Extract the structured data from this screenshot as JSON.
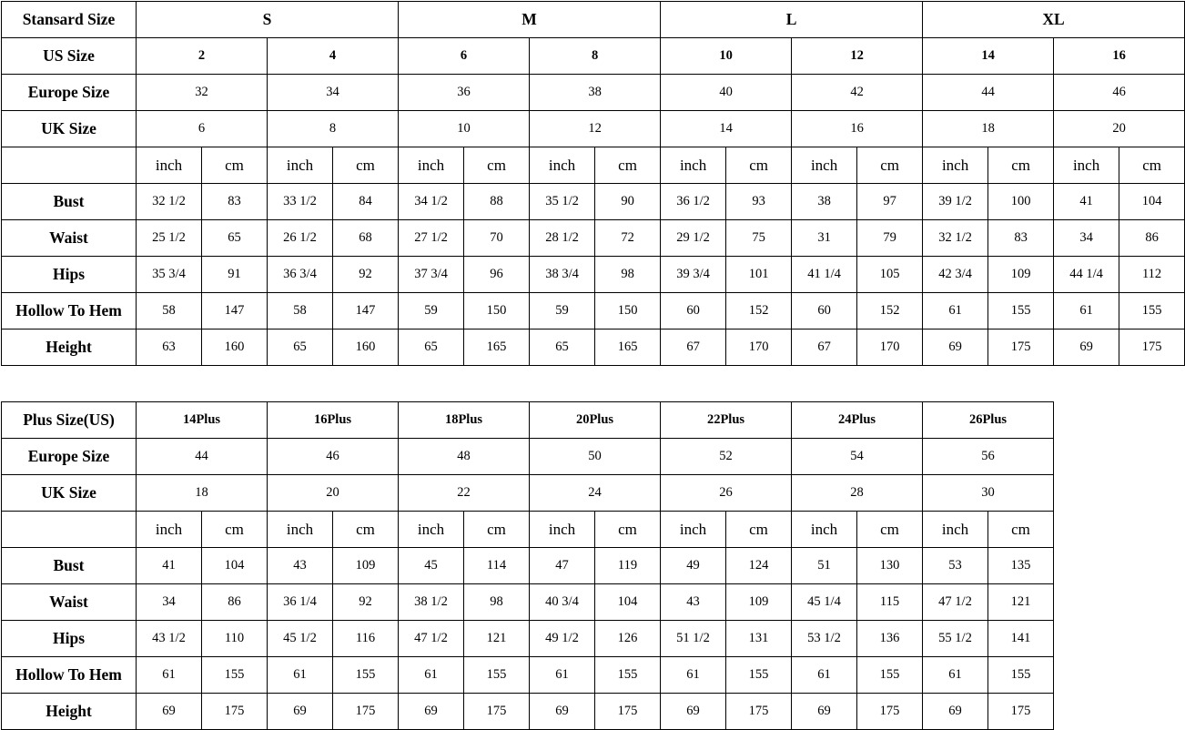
{
  "standard": {
    "header_label": "Stansard Size",
    "groups": [
      "S",
      "M",
      "L",
      "XL"
    ],
    "us_label": "US Size",
    "us": [
      "2",
      "4",
      "6",
      "8",
      "10",
      "12",
      "14",
      "16"
    ],
    "europe_label": "Europe Size",
    "europe": [
      "32",
      "34",
      "36",
      "38",
      "40",
      "42",
      "44",
      "46"
    ],
    "uk_label": "UK Size",
    "uk": [
      "6",
      "8",
      "10",
      "12",
      "14",
      "16",
      "18",
      "20"
    ],
    "unit_inch": "inch",
    "unit_cm": "cm",
    "rows": [
      {
        "label": "Bust",
        "values": [
          "32 1/2",
          "83",
          "33 1/2",
          "84",
          "34 1/2",
          "88",
          "35 1/2",
          "90",
          "36 1/2",
          "93",
          "38",
          "97",
          "39 1/2",
          "100",
          "41",
          "104"
        ]
      },
      {
        "label": "Waist",
        "values": [
          "25 1/2",
          "65",
          "26 1/2",
          "68",
          "27 1/2",
          "70",
          "28 1/2",
          "72",
          "29 1/2",
          "75",
          "31",
          "79",
          "32 1/2",
          "83",
          "34",
          "86"
        ]
      },
      {
        "label": "Hips",
        "values": [
          "35 3/4",
          "91",
          "36 3/4",
          "92",
          "37 3/4",
          "96",
          "38 3/4",
          "98",
          "39 3/4",
          "101",
          "41 1/4",
          "105",
          "42 3/4",
          "109",
          "44 1/4",
          "112"
        ]
      },
      {
        "label": "Hollow To Hem",
        "values": [
          "58",
          "147",
          "58",
          "147",
          "59",
          "150",
          "59",
          "150",
          "60",
          "152",
          "60",
          "152",
          "61",
          "155",
          "61",
          "155"
        ]
      },
      {
        "label": "Height",
        "values": [
          "63",
          "160",
          "65",
          "160",
          "65",
          "165",
          "65",
          "165",
          "67",
          "170",
          "67",
          "170",
          "69",
          "175",
          "69",
          "175"
        ]
      }
    ]
  },
  "plus": {
    "header_label": "Plus Size(US)",
    "sizes": [
      "14Plus",
      "16Plus",
      "18Plus",
      "20Plus",
      "22Plus",
      "24Plus",
      "26Plus"
    ],
    "europe_label": "Europe Size",
    "europe": [
      "44",
      "46",
      "48",
      "50",
      "52",
      "54",
      "56"
    ],
    "uk_label": "UK Size",
    "uk": [
      "18",
      "20",
      "22",
      "24",
      "26",
      "28",
      "30"
    ],
    "unit_inch": "inch",
    "unit_cm": "cm",
    "rows": [
      {
        "label": "Bust",
        "values": [
          "41",
          "104",
          "43",
          "109",
          "45",
          "114",
          "47",
          "119",
          "49",
          "124",
          "51",
          "130",
          "53",
          "135"
        ]
      },
      {
        "label": "Waist",
        "values": [
          "34",
          "86",
          "36 1/4",
          "92",
          "38 1/2",
          "98",
          "40 3/4",
          "104",
          "43",
          "109",
          "45 1/4",
          "115",
          "47 1/2",
          "121"
        ]
      },
      {
        "label": "Hips",
        "values": [
          "43 1/2",
          "110",
          "45 1/2",
          "116",
          "47 1/2",
          "121",
          "49 1/2",
          "126",
          "51 1/2",
          "131",
          "53 1/2",
          "136",
          "55 1/2",
          "141"
        ]
      },
      {
        "label": "Hollow To Hem",
        "values": [
          "61",
          "155",
          "61",
          "155",
          "61",
          "155",
          "61",
          "155",
          "61",
          "155",
          "61",
          "155",
          "61",
          "155"
        ]
      },
      {
        "label": "Height",
        "values": [
          "69",
          "175",
          "69",
          "175",
          "69",
          "175",
          "69",
          "175",
          "69",
          "175",
          "69",
          "175",
          "69",
          "175"
        ]
      }
    ]
  }
}
